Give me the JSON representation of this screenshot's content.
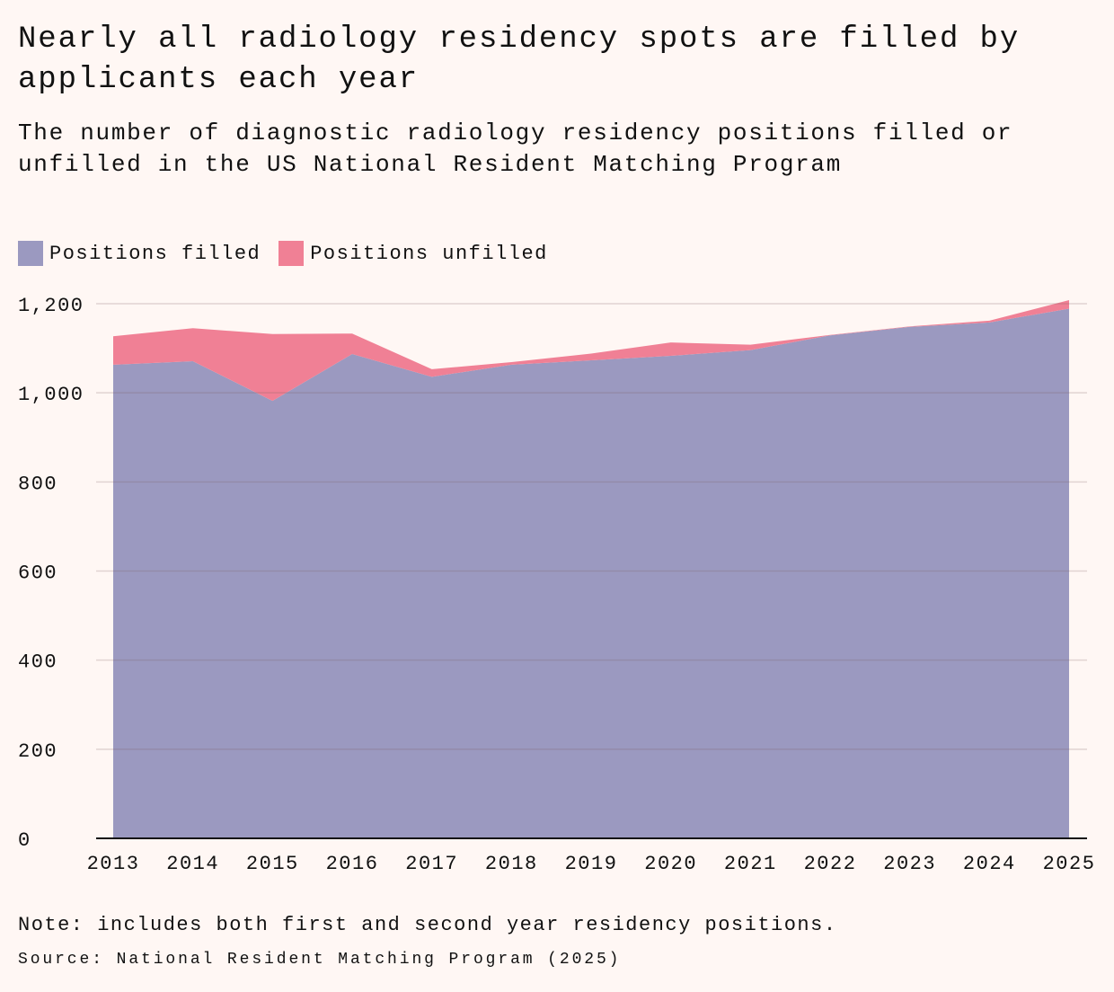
{
  "title": "Nearly all radiology residency spots are filled by applicants each year",
  "subtitle": "The number of diagnostic radiology residency positions filled or unfilled in the US National Resident Matching Program",
  "note": "Note: includes both first and second year residency positions.",
  "source": "Source: National Resident Matching Program (2025)",
  "chart_data": {
    "type": "area",
    "stacked": true,
    "x": [
      2013,
      2014,
      2015,
      2016,
      2017,
      2018,
      2019,
      2020,
      2021,
      2022,
      2023,
      2024,
      2025
    ],
    "x_tick_labels": [
      "2013",
      "2014",
      "2015",
      "2016",
      "2017",
      "2018",
      "2019",
      "2020",
      "2021",
      "2022",
      "2023",
      "2024",
      "2025"
    ],
    "series": [
      {
        "name": "Positions filled",
        "color": "#9b99c0",
        "values": [
          1063,
          1071,
          982,
          1087,
          1036,
          1063,
          1073,
          1083,
          1096,
          1129,
          1148,
          1158,
          1189
        ]
      },
      {
        "name": "Positions unfilled",
        "color": "#f08095",
        "values": [
          64,
          74,
          150,
          46,
          17,
          6,
          15,
          30,
          12,
          1,
          1,
          4,
          19
        ]
      }
    ],
    "ylim": [
      0,
      1200
    ],
    "y_ticks": [
      0,
      200,
      400,
      600,
      800,
      1000,
      1200
    ],
    "y_tick_labels": [
      "0",
      "200",
      "400",
      "600",
      "800",
      "1,000",
      "1,200"
    ],
    "grid": true,
    "legend_placement": "top-left",
    "background": "#fff7f4"
  }
}
